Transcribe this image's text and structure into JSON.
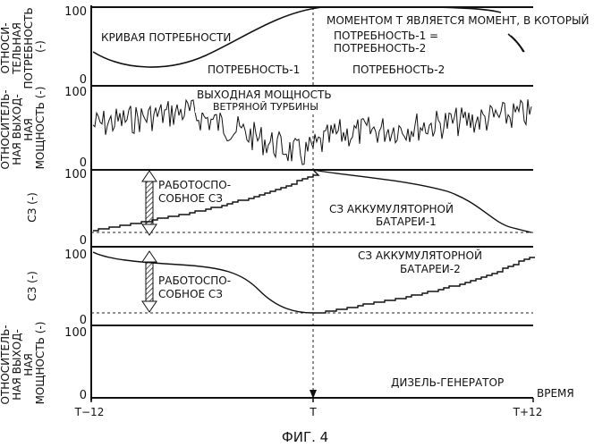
{
  "figure": {
    "caption": "ФИГ. 4",
    "time_axis": {
      "label": "ВРЕМЯ",
      "ticks": [
        "T−12",
        "T",
        "T+12"
      ]
    }
  },
  "panels": {
    "demand": {
      "ylabel_lines": [
        "ОТНОСИ-",
        "ТЕЛЬНАЯ",
        "ПОТРЕБНОСТЬ",
        "(-)"
      ],
      "y_top": "100",
      "y_bottom": "0",
      "curve_label": "КРИВАЯ ПОТРЕБНОСТИ",
      "demand1_label": "ПОТРЕБНОСТЬ-1",
      "demand2_label": "ПОТРЕБНОСТЬ-2",
      "note_lines": [
        "МОМЕНТОМ Т ЯВЛЯЕТСЯ МОМЕНТ, В КОТОРЫЙ",
        "ПОТРЕБНОСТЬ-1 =",
        "ПОТРЕБНОСТЬ-2"
      ]
    },
    "wind": {
      "ylabel_lines": [
        "ОТНОСИТЕЛЬ-",
        "НАЯ ВЫХОД-",
        "НАЯ",
        "МОЩНОСТЬ (-)"
      ],
      "y_top": "100",
      "y_bottom": "0",
      "label_lines": [
        "ВЫХОДНАЯ МОЩНОСТЬ",
        "ВЕТРЯНОЙ ТУРБИНЫ"
      ]
    },
    "battery1": {
      "ylabel": "СЗ (-)",
      "y_top": "100",
      "y_bottom": "0",
      "usable_lines": [
        "РАБОТОСПО-",
        "СОБНОЕ СЗ"
      ],
      "label_lines": [
        "СЗ АККУМУЛЯТОРНОЙ",
        "БАТАРЕИ-1"
      ]
    },
    "battery2": {
      "ylabel": "СЗ (-)",
      "y_top": "100",
      "y_bottom": "0",
      "usable_lines": [
        "РАБОТОСПО-",
        "СОБНОЕ СЗ"
      ],
      "label_lines": [
        "СЗ АККУМУЛЯТОРНОЙ",
        "БАТАРЕИ-2"
      ]
    },
    "diesel": {
      "ylabel_lines": [
        "ОТНОСИТЕЛЬ-",
        "НАЯ ВЫХОД-",
        "НАЯ",
        "МОЩНОСТЬ (-)"
      ],
      "y_top": "100",
      "y_bottom": "0",
      "label": "ДИЗЕЛЬ-ГЕНЕРАТОР"
    }
  }
}
